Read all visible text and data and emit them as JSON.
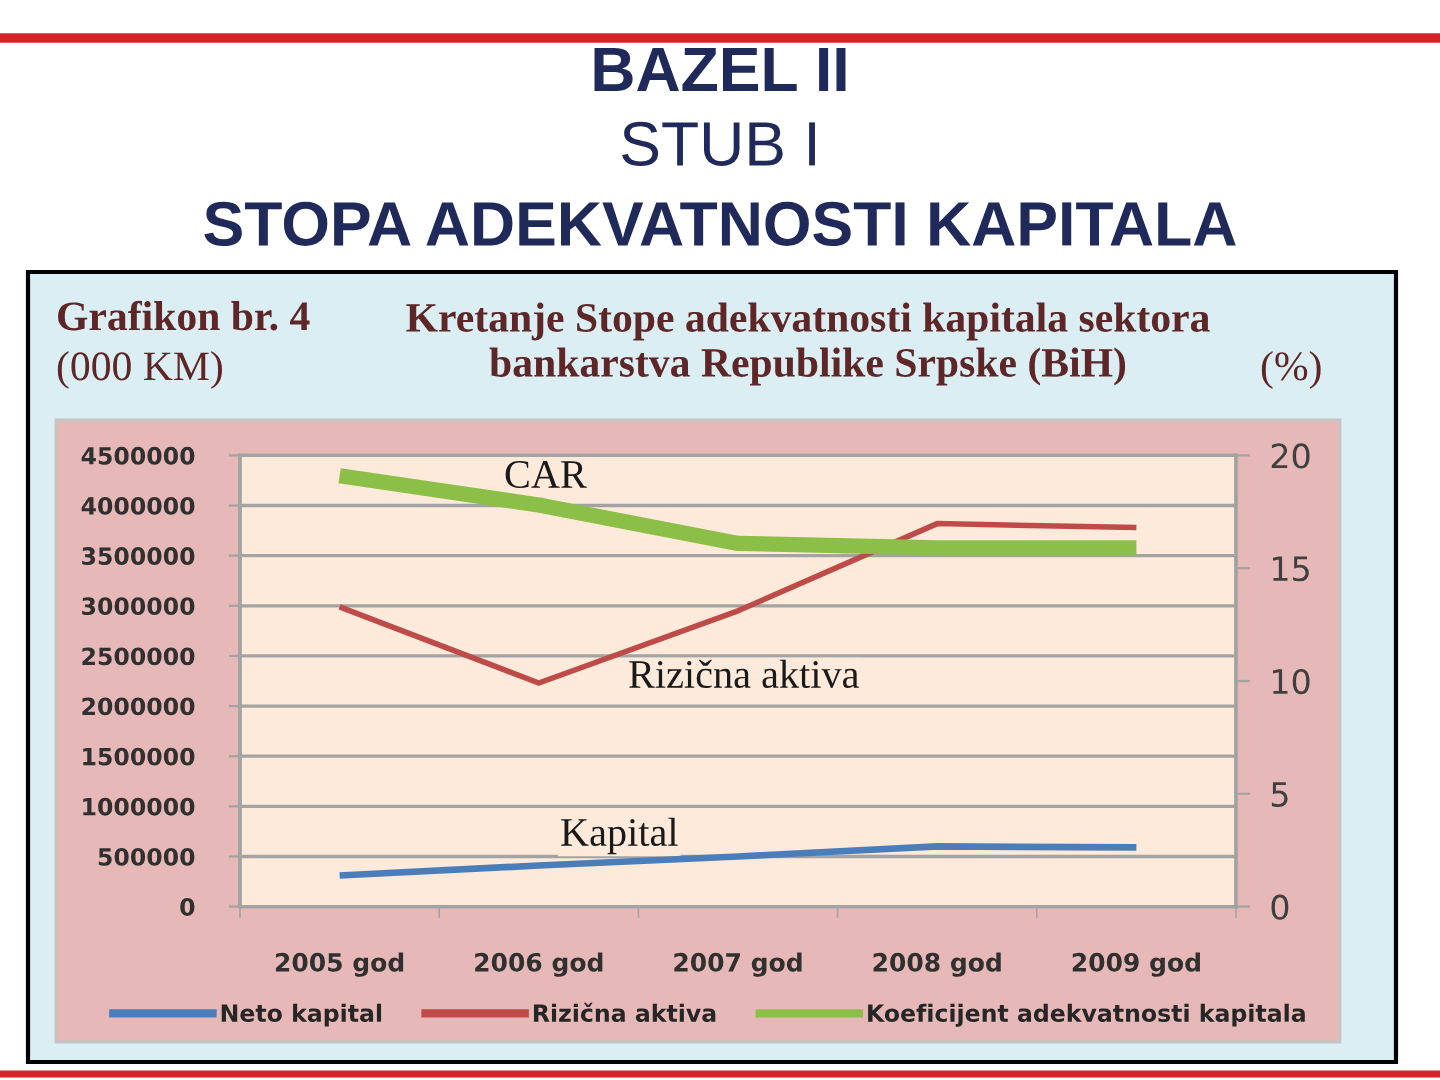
{
  "chart_data": {
    "type": "line",
    "title": "BAZEL II",
    "subtitle": "STUB I",
    "ylabel": "(000 KM)",
    "y2label": "(%)",
    "categories": [
      "2005 god",
      "2006 god",
      "2007 god",
      "2008 god",
      "2009 god"
    ],
    "series": [
      {
        "name": "Neto kapital",
        "color": "#4a7ebb",
        "values": [
          310000,
          410000,
          500000,
          600000,
          590000
        ]
      },
      {
        "name": "Rizična aktiva",
        "color": "#be4b48",
        "values": [
          2990000,
          2230000,
          2950000,
          3820000,
          3780000
        ]
      },
      {
        "name": "Koeficijent adekvatnosti kapitala",
        "color": "#8cbf47",
        "values": [
          19.1,
          17.8,
          16.1,
          15.9,
          15.9
        ],
        "axis": "y2"
      }
    ],
    "ylim": [
      0,
      4500000
    ],
    "yticks": [
      0,
      500000,
      1000000,
      1500000,
      2000000,
      2500000,
      3000000,
      3500000,
      4000000,
      4500000
    ],
    "y2lim": [
      0,
      20
    ],
    "y2ticks": [
      0,
      5,
      10,
      15,
      20
    ],
    "grid": "y",
    "legend": "bottom",
    "annotations": [
      "STOPA ADEKVATNOSTI KAPITALA",
      "Grafikon br. 4",
      "Kretanje Stope adekvatnosti kapitala sektora\nbankarstva Republike Srpske (BiH)",
      "CAR",
      "Rizična aktiva",
      "Kapital"
    ]
  }
}
